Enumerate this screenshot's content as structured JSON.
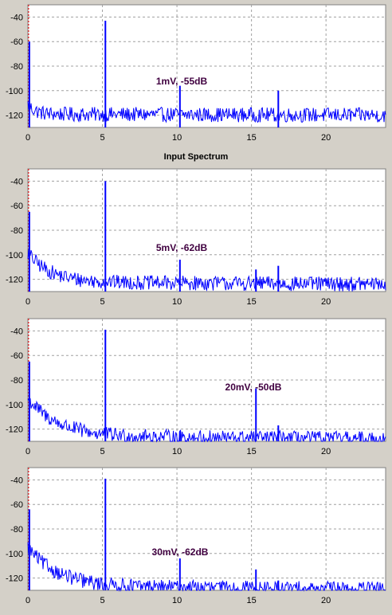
{
  "colors": {
    "background": "#d4d0c8",
    "plot_background": "#ffffff",
    "trace": "#0000ff",
    "grid": "#a0a0a0",
    "marker": "#ff0000",
    "annotation": "#400040"
  },
  "separator_label": "Input Spectrum",
  "chart_data": [
    {
      "type": "line",
      "title": "",
      "annotation": "1mV, -55dB",
      "xlim": [
        0,
        24
      ],
      "ylim": [
        -130,
        -30
      ],
      "x_ticks": [
        "0",
        "5",
        "10",
        "15",
        "20"
      ],
      "y_ticks": [
        "-40",
        "-60",
        "-80",
        "-100",
        "-120"
      ],
      "grid": true,
      "noise_floor": {
        "start": -112,
        "mid": -118,
        "end": -120,
        "tail": 0.5
      },
      "peaks": [
        {
          "x": 0.1,
          "y": -60
        },
        {
          "x": 5.2,
          "y": -43
        },
        {
          "x": 10.2,
          "y": -96
        },
        {
          "x": 16.8,
          "y": -100
        }
      ]
    },
    {
      "type": "line",
      "title": "",
      "annotation": "5mV, -62dB",
      "xlim": [
        0,
        24
      ],
      "ylim": [
        -130,
        -30
      ],
      "x_ticks": [
        "0",
        "5",
        "10",
        "15",
        "20"
      ],
      "y_ticks": [
        "-40",
        "-60",
        "-80",
        "-100",
        "-120"
      ],
      "grid": true,
      "noise_floor": {
        "start": -100,
        "mid": -120,
        "end": -124,
        "tail": 1.5
      },
      "peaks": [
        {
          "x": 0.1,
          "y": -65
        },
        {
          "x": 5.2,
          "y": -40
        },
        {
          "x": 10.2,
          "y": -104
        },
        {
          "x": 15.3,
          "y": -112
        },
        {
          "x": 16.8,
          "y": -109
        }
      ]
    },
    {
      "type": "line",
      "title": "",
      "annotation": "20mV, -50dB",
      "xlim": [
        0,
        24
      ],
      "ylim": [
        -130,
        -30
      ],
      "x_ticks": [
        "0",
        "5",
        "10",
        "15",
        "20"
      ],
      "y_ticks": [
        "-40",
        "-60",
        "-80",
        "-100",
        "-120"
      ],
      "grid": true,
      "noise_floor": {
        "start": -97,
        "mid": -123,
        "end": -128,
        "tail": 2.0
      },
      "peaks": [
        {
          "x": 0.1,
          "y": -65
        },
        {
          "x": 5.2,
          "y": -39
        },
        {
          "x": 10.2,
          "y": -122
        },
        {
          "x": 15.3,
          "y": -87
        },
        {
          "x": 16.8,
          "y": -117
        },
        {
          "x": 22.3,
          "y": -124
        }
      ]
    },
    {
      "type": "line",
      "title": "",
      "annotation": "30mV, -62dB",
      "xlim": [
        0,
        24
      ],
      "ylim": [
        -130,
        -30
      ],
      "x_ticks": [
        "0",
        "5",
        "10",
        "15",
        "20"
      ],
      "y_ticks": [
        "-40",
        "-60",
        "-80",
        "-100",
        "-120"
      ],
      "grid": true,
      "noise_floor": {
        "start": -97,
        "mid": -124,
        "end": -129,
        "tail": 2.0
      },
      "peaks": [
        {
          "x": 0.1,
          "y": -64
        },
        {
          "x": 5.2,
          "y": -39
        },
        {
          "x": 10.2,
          "y": -104
        },
        {
          "x": 15.3,
          "y": -113
        },
        {
          "x": 16.8,
          "y": -122
        }
      ]
    }
  ]
}
